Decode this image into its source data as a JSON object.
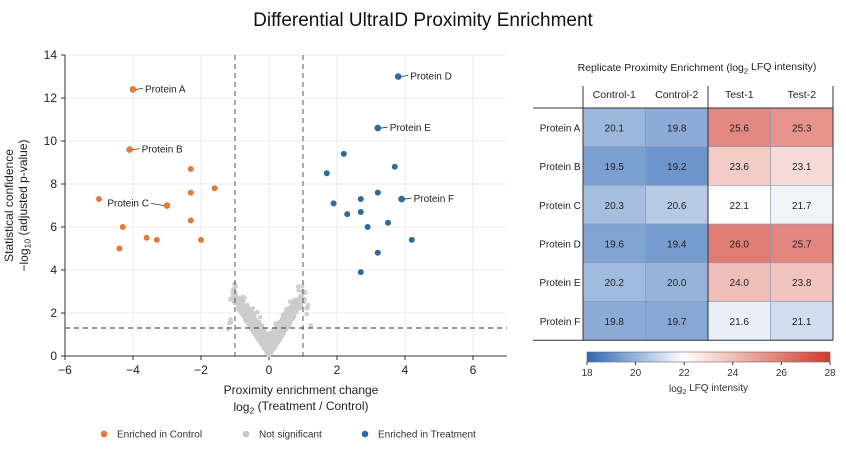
{
  "title": "Differential UltraID Proximity Enrichment",
  "chart_data": [
    {
      "type": "scatter",
      "xlabel": "Proximity enrichment change",
      "xlabel2": "log2 (Treatment / Control)",
      "ylabel": "Statistical confidence",
      "ylabel2": "−log10 (adjusted p-value)",
      "xlim": [
        -6,
        7
      ],
      "ylim": [
        0,
        14
      ],
      "xticks": [
        -6,
        -4,
        -2,
        0,
        2,
        4,
        6
      ],
      "yticks": [
        0,
        2,
        4,
        6,
        8,
        10,
        12,
        14
      ],
      "grid": true,
      "thresholds": {
        "fold_change": [
          -1,
          1
        ],
        "p_value_line": 1.3
      },
      "legend": {
        "position": "bottom",
        "items": [
          {
            "label": "Enriched in Control",
            "color": "#E07B39"
          },
          {
            "label": "Not significant",
            "color": "#C8C8C8"
          },
          {
            "label": "Enriched in Treatment",
            "color": "#2E6A9E"
          }
        ]
      },
      "series": [
        {
          "name": "Enriched in Control",
          "color": "#E07B39",
          "points": [
            [
              -4.0,
              12.4
            ],
            [
              -4.1,
              9.6
            ],
            [
              -3.0,
              7.0
            ],
            [
              -5.0,
              7.3
            ],
            [
              -4.3,
              6.0
            ],
            [
              -2.3,
              8.7
            ],
            [
              -2.3,
              7.6
            ],
            [
              -1.6,
              7.8
            ],
            [
              -2.3,
              6.3
            ],
            [
              -2.0,
              5.4
            ],
            [
              -3.3,
              5.4
            ],
            [
              -3.6,
              5.5
            ],
            [
              -4.4,
              5.0
            ]
          ]
        },
        {
          "name": "Enriched in Treatment",
          "color": "#2E6A9E",
          "points": [
            [
              3.8,
              13.0
            ],
            [
              3.2,
              10.6
            ],
            [
              2.2,
              9.4
            ],
            [
              3.7,
              8.8
            ],
            [
              1.7,
              8.5
            ],
            [
              3.9,
              7.3
            ],
            [
              3.2,
              7.6
            ],
            [
              2.7,
              7.3
            ],
            [
              1.9,
              7.1
            ],
            [
              2.3,
              6.6
            ],
            [
              2.7,
              6.7
            ],
            [
              2.9,
              6.0
            ],
            [
              3.5,
              6.2
            ],
            [
              4.2,
              5.4
            ],
            [
              3.2,
              4.8
            ],
            [
              2.7,
              3.9
            ]
          ]
        }
      ],
      "annotations": [
        {
          "label": "Protein A",
          "x": -4.0,
          "y": 12.4,
          "side": "right"
        },
        {
          "label": "Protein B",
          "x": -4.1,
          "y": 9.6,
          "side": "right"
        },
        {
          "label": "Protein C",
          "x": -3.0,
          "y": 7.0,
          "side": "left"
        },
        {
          "label": "Protein D",
          "x": 3.8,
          "y": 13.0,
          "side": "right"
        },
        {
          "label": "Protein E",
          "x": 3.2,
          "y": 10.6,
          "side": "right"
        },
        {
          "label": "Protein F",
          "x": 3.9,
          "y": 7.3,
          "side": "right"
        }
      ]
    },
    {
      "type": "heatmap",
      "title": "Replicate Proximity Enrichment (log2 LFQ intensity)",
      "columns": [
        "Control-1",
        "Control-2",
        "Test-1",
        "Test-2"
      ],
      "rows": [
        "Protein A",
        "Protein B",
        "Protein C",
        "Protein D",
        "Protein E",
        "Protein F"
      ],
      "values": [
        [
          20.1,
          19.8,
          25.6,
          25.3
        ],
        [
          19.5,
          19.2,
          23.6,
          23.1
        ],
        [
          20.3,
          20.6,
          22.1,
          21.7
        ],
        [
          19.6,
          19.4,
          26.0,
          25.7
        ],
        [
          20.2,
          20.0,
          24.0,
          23.8
        ],
        [
          19.8,
          19.7,
          21.6,
          21.1
        ]
      ],
      "colorbar": {
        "label": "log2 LFQ intensity",
        "range": [
          18,
          28
        ],
        "ticks": [
          18,
          20,
          22,
          24,
          26,
          28
        ],
        "colors": [
          "#2E67B5",
          "#ffffff",
          "#D23B2E"
        ]
      }
    }
  ]
}
